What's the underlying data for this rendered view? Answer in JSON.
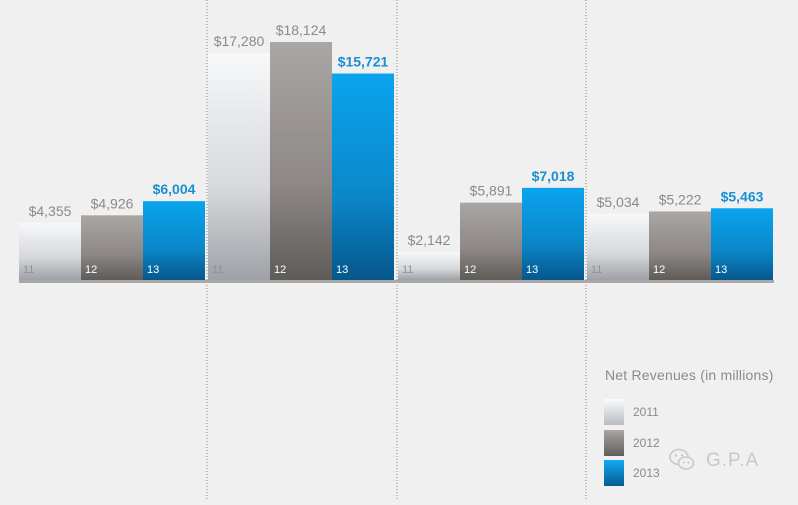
{
  "chart_data": {
    "type": "bar",
    "groups": [
      {
        "categories": [
          "11",
          "12",
          "13"
        ],
        "values": [
          4355,
          4926,
          6004
        ],
        "labels": [
          "$4,355",
          "$4,926",
          "$6,004"
        ]
      },
      {
        "categories": [
          "11",
          "12",
          "13"
        ],
        "values": [
          17280,
          18124,
          15721
        ],
        "labels": [
          "$17,280",
          "$18,124",
          "$15,721"
        ]
      },
      {
        "categories": [
          "11",
          "12",
          "13"
        ],
        "values": [
          2142,
          5891,
          7018
        ],
        "labels": [
          "$2,142",
          "$5,891",
          "$7,018"
        ]
      },
      {
        "categories": [
          "11",
          "12",
          "13"
        ],
        "values": [
          5034,
          5222,
          5463
        ],
        "labels": [
          "$5,034",
          "$5,222",
          "$5,463"
        ]
      }
    ],
    "series": [
      {
        "name": "2011"
      },
      {
        "name": "2012"
      },
      {
        "name": "2013"
      }
    ],
    "legend_title": "Net Revenues  (in millions)",
    "ylim": [
      0,
      18124
    ],
    "colors": {
      "2011": "#c9cacd",
      "2012": "#8d8885",
      "2013": "#0b8fd4",
      "highlight_label": "#1a8fd0",
      "label": "#8a8a8a"
    }
  },
  "watermark": "G.P.A"
}
